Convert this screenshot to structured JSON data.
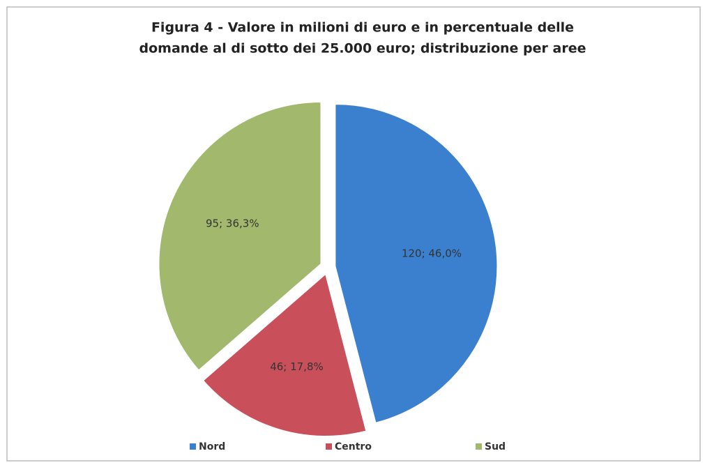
{
  "chart_data": {
    "type": "pie",
    "title": [
      "Figura 4 - Valore in milioni di euro e in percentuale delle",
      "domande al di sotto dei 25.000 euro; distribuzione per aree"
    ],
    "categories": [
      "Nord",
      "Centro",
      "Sud"
    ],
    "values": [
      120,
      46,
      95
    ],
    "value_labels": [
      "120; 46,0%",
      "46; 17,8%",
      "95; 36,3%"
    ],
    "colors": [
      "#3b80cf",
      "#c9505b",
      "#a2b86c"
    ],
    "legend": "bottom"
  }
}
